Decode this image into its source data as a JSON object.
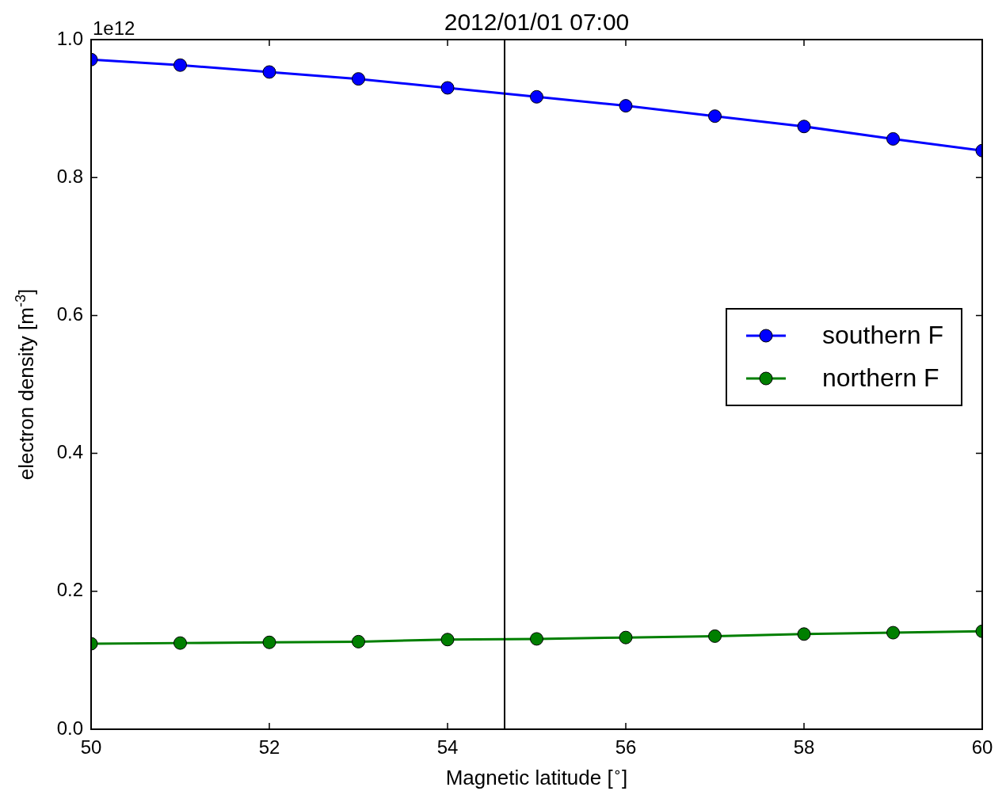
{
  "chart_data": {
    "type": "line",
    "title": "2012/01/01 07:00",
    "xlabel": "Magnetic latitude [$^{∘}$]",
    "ylabel": "electron density [m$^{-3}$]",
    "annotations": [
      "1e12"
    ],
    "x": [
      50,
      51,
      52,
      53,
      54,
      55,
      56,
      57,
      58,
      59,
      60
    ],
    "series": [
      {
        "name": "southern F",
        "color": "#0000ff",
        "values": [
          0.971,
          0.963,
          0.953,
          0.943,
          0.93,
          0.917,
          0.904,
          0.889,
          0.874,
          0.856,
          0.839
        ]
      },
      {
        "name": "northern F",
        "color": "#007f00",
        "values": [
          0.124,
          0.125,
          0.126,
          0.127,
          0.13,
          0.131,
          0.133,
          0.135,
          0.138,
          0.14,
          0.142
        ]
      }
    ],
    "xlim": [
      50,
      60
    ],
    "xticks": [
      50,
      52,
      54,
      56,
      58,
      60
    ],
    "ylim": [
      0,
      1
    ],
    "yticks": [
      {
        "value": 0,
        "label": "0.0"
      },
      0.2,
      0.4,
      0.6,
      0.8,
      {
        "value": 1,
        "label": "1.0"
      }
    ],
    "ref_lines": [
      {
        "axis": "x",
        "value": 54.64,
        "color": "#000000"
      }
    ],
    "grid": false,
    "legend": "right",
    "marker": "circle",
    "line_style": "solid"
  }
}
